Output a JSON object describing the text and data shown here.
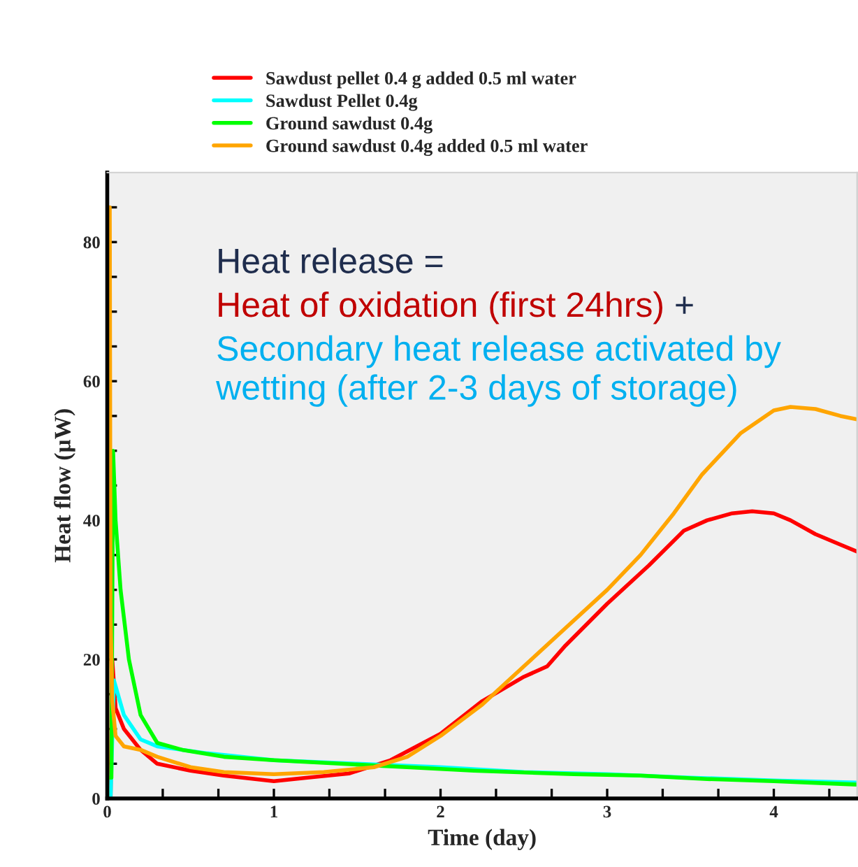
{
  "chart_data": {
    "type": "line",
    "xlabel": "Time (day)",
    "ylabel": "Heat flow (µW)",
    "xlim": [
      0,
      4.5
    ],
    "ylim": [
      0,
      90
    ],
    "xticks": [
      0,
      {
        "value": 0.333,
        "label": null
      },
      {
        "value": 0.667,
        "label": null
      },
      1,
      {
        "value": 1.333,
        "label": null
      },
      {
        "value": 1.667,
        "label": null
      },
      2,
      {
        "value": 2.333,
        "label": null
      },
      {
        "value": 2.667,
        "label": null
      },
      3,
      {
        "value": 3.333,
        "label": null
      },
      {
        "value": 3.667,
        "label": null
      },
      4,
      {
        "value": 4.333,
        "label": null
      }
    ],
    "yticks": [
      0,
      {
        "value": 5,
        "label": null
      },
      {
        "value": 10,
        "label": null
      },
      {
        "value": 15,
        "label": null
      },
      20,
      {
        "value": 25,
        "label": null
      },
      {
        "value": 30,
        "label": null
      },
      {
        "value": 35,
        "label": null
      },
      40,
      {
        "value": 45,
        "label": null
      },
      {
        "value": 50,
        "label": null
      },
      {
        "value": 55,
        "label": null
      },
      60,
      {
        "value": 65,
        "label": null
      },
      {
        "value": 70,
        "label": null
      },
      {
        "value": 75,
        "label": null
      },
      80,
      {
        "value": 85,
        "label": null
      }
    ],
    "grid": false,
    "legend": "top",
    "marker": "none",
    "line_style": "solid",
    "annotations": [
      "Heat release =",
      "Heat of oxidation (first 24hrs)",
      "+",
      "Secondary heat release activated by wetting (after 2-3 days of storage)"
    ],
    "series": [
      {
        "name": "Sawdust pellet 0.4 g added 0.5 ml water",
        "color": "#ff0000",
        "x": [
          0.02,
          0.03,
          0.05,
          0.1,
          0.2,
          0.3,
          0.5,
          0.7,
          1.0,
          1.2,
          1.45,
          1.7,
          2.0,
          2.25,
          2.5,
          2.64,
          2.75,
          3.0,
          3.25,
          3.46,
          3.6,
          3.75,
          3.87,
          4.0,
          4.1,
          4.25,
          4.4,
          4.5
        ],
        "values": [
          0,
          20,
          13,
          10,
          7,
          5,
          4,
          3.3,
          2.5,
          3,
          3.6,
          5.5,
          9.3,
          14,
          17.5,
          19,
          22,
          28,
          33.5,
          38.5,
          40,
          41,
          41.3,
          41,
          40,
          38,
          36.5,
          35.5
        ]
      },
      {
        "name": "Sawdust Pellet 0.4g",
        "color": "#00ffff",
        "x": [
          0.02,
          0.04,
          0.1,
          0.2,
          0.3,
          0.6,
          1.0,
          1.5,
          2.0,
          2.5,
          3.0,
          3.5,
          4.0,
          4.5
        ],
        "values": [
          0,
          17,
          12,
          8.5,
          7.5,
          6.5,
          5.5,
          5,
          4.5,
          3.8,
          3.5,
          3,
          2.6,
          2.3
        ]
      },
      {
        "name": "Ground sawdust 0.4g",
        "color": "#00ff00",
        "x": [
          0,
          0.025,
          0.035,
          0.05,
          0.08,
          0.13,
          0.2,
          0.3,
          0.45,
          0.7,
          1.0,
          1.4,
          1.8,
          2.2,
          2.8,
          3.2,
          3.6,
          4.0,
          4.5
        ],
        "values": [
          3,
          3,
          50,
          40,
          30,
          20,
          12,
          8,
          7,
          6,
          5.5,
          5,
          4.5,
          4,
          3.5,
          3.3,
          2.8,
          2.5,
          2
        ]
      },
      {
        "name": "Ground sawdust 0.4g added 0.5 ml water",
        "color": "#ffa500",
        "x": [
          0,
          0.005,
          0.015,
          0.02,
          0.03,
          0.05,
          0.1,
          0.2,
          0.3,
          0.5,
          0.7,
          1.0,
          1.3,
          1.6,
          1.8,
          2.0,
          2.25,
          2.5,
          2.75,
          3.0,
          3.2,
          3.4,
          3.57,
          3.8,
          4.0,
          4.1,
          4.25,
          4.4,
          4.5
        ],
        "values": [
          0,
          85,
          85,
          26,
          14,
          9,
          7.5,
          7,
          6,
          4.5,
          3.8,
          3.5,
          3.8,
          4.5,
          6,
          9,
          13.5,
          19,
          24.5,
          30,
          35,
          41,
          46.6,
          52.5,
          55.8,
          56.3,
          56,
          55,
          54.5
        ]
      }
    ]
  }
}
